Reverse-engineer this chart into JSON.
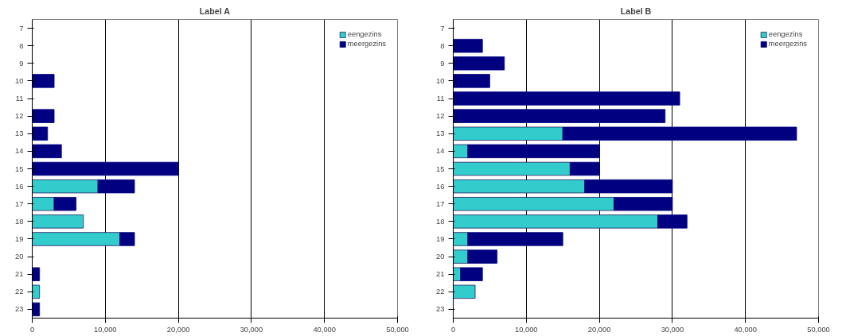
{
  "chart_data": [
    {
      "type": "bar",
      "title": "Label A",
      "orientation": "horizontal",
      "stacked": true,
      "categories": [
        "7",
        "8",
        "9",
        "10",
        "11",
        "12",
        "13",
        "14",
        "15",
        "16",
        "17",
        "18",
        "19",
        "20",
        "21",
        "22",
        "23"
      ],
      "series": [
        {
          "name": "eengezins",
          "color": "#33cccc",
          "values": [
            null,
            null,
            null,
            null,
            null,
            null,
            null,
            null,
            null,
            9000,
            3000,
            7000,
            12000,
            null,
            null,
            1000,
            null
          ]
        },
        {
          "name": "meergezins",
          "color": "#000080",
          "values": [
            null,
            null,
            null,
            3000,
            null,
            3000,
            2100,
            4000,
            20000,
            5000,
            3000,
            null,
            2000,
            null,
            1000,
            null,
            1000
          ]
        }
      ],
      "xlim": [
        0,
        50000
      ],
      "xticks": [
        {
          "value": 0,
          "label": "0"
        },
        {
          "value": 10000,
          "label": "10,000"
        },
        {
          "value": 20000,
          "label": "20,000"
        },
        {
          "value": 30000,
          "label": "30,000"
        },
        {
          "value": 40000,
          "label": "40,000"
        },
        {
          "value": 50000,
          "label": "50,000"
        }
      ],
      "grid": "x",
      "legend": "top right"
    },
    {
      "type": "bar",
      "title": "Label B",
      "orientation": "horizontal",
      "stacked": true,
      "categories": [
        "7",
        "8",
        "9",
        "10",
        "11",
        "12",
        "13",
        "14",
        "15",
        "16",
        "17",
        "18",
        "19",
        "20",
        "21",
        "22",
        "23"
      ],
      "series": [
        {
          "name": "eengezins",
          "color": "#33cccc",
          "values": [
            null,
            null,
            null,
            null,
            null,
            null,
            15000,
            2000,
            16000,
            18000,
            22000,
            28000,
            2000,
            2000,
            1000,
            3000,
            null
          ]
        },
        {
          "name": "meergezins",
          "color": "#000080",
          "values": [
            null,
            4000,
            7000,
            5000,
            31000,
            29000,
            32000,
            18000,
            4000,
            12000,
            8000,
            4000,
            13000,
            4000,
            3000,
            null,
            null
          ]
        }
      ],
      "xlim": [
        0,
        50000
      ],
      "xticks": [
        {
          "value": 0,
          "label": "0"
        },
        {
          "value": 10000,
          "label": "10,000"
        },
        {
          "value": 20000,
          "label": "20,000"
        },
        {
          "value": 30000,
          "label": "30,000"
        },
        {
          "value": 40000,
          "label": "40,000"
        },
        {
          "value": 50000,
          "label": "50,000"
        }
      ],
      "grid": "x",
      "legend": "top right"
    }
  ]
}
